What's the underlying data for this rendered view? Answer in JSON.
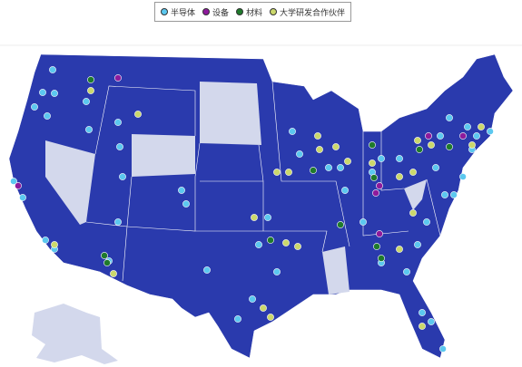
{
  "legend": {
    "items": [
      {
        "label": "半导体",
        "color": "#5cc8ef"
      },
      {
        "label": "设备",
        "color": "#8e1a9c"
      },
      {
        "label": "材料",
        "color": "#1f7a2c"
      },
      {
        "label": "大学研发合作伙伴",
        "color": "#cbd86c"
      }
    ]
  }
}
